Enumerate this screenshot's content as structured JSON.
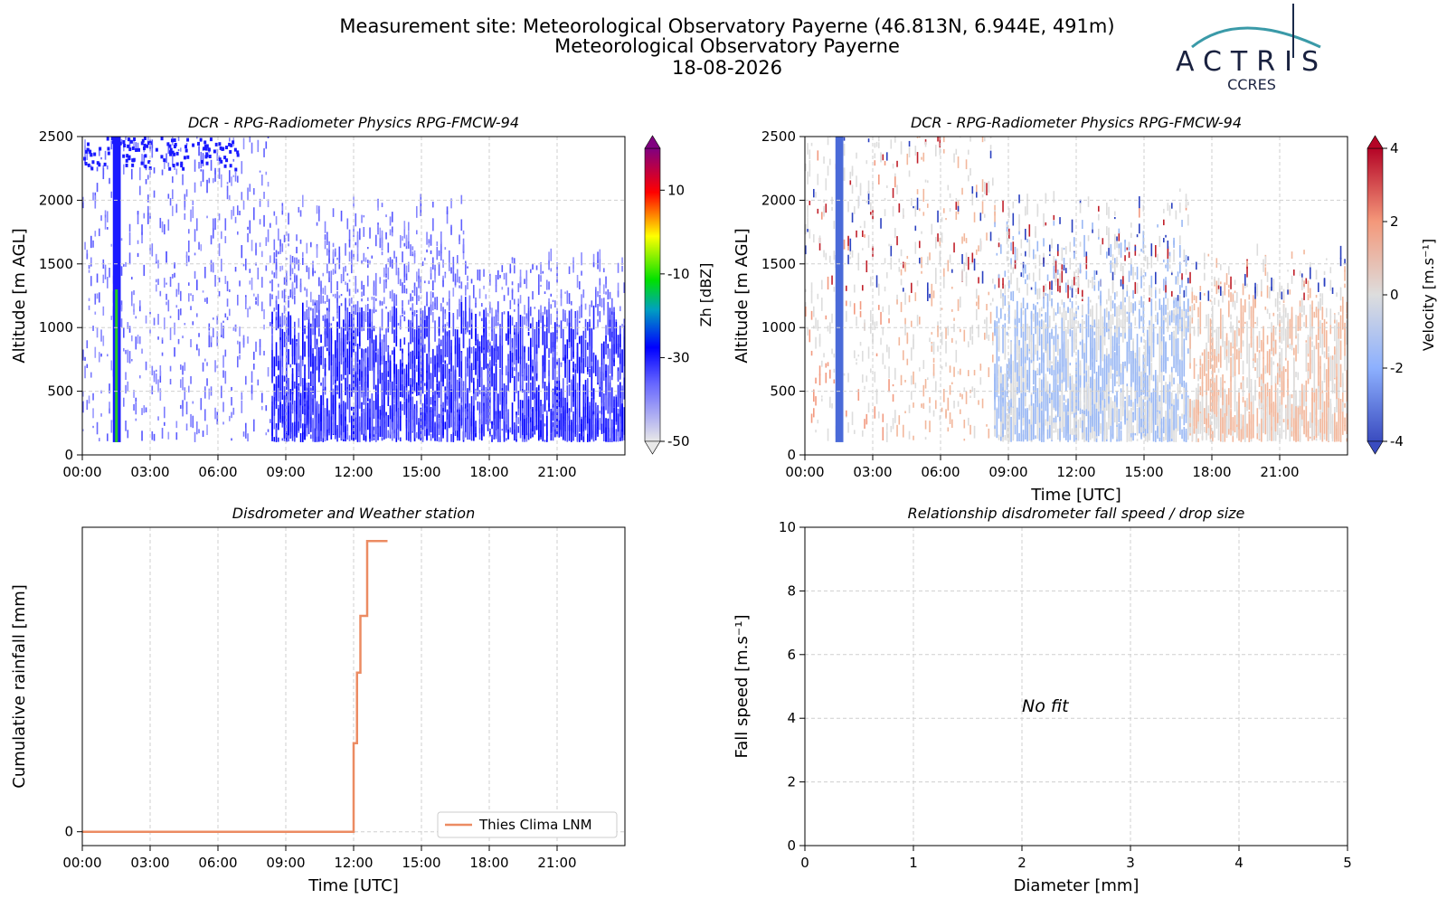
{
  "header": {
    "title_lines": [
      "Measurement site: Meteorological Observatory Payerne (46.813N, 6.944E, 491m)",
      "Meteorological Observatory Payerne",
      "18-08-2026"
    ],
    "logo": {
      "name": "ACTRIS",
      "subtitle": "CCRES"
    }
  },
  "chart_data": [
    {
      "type": "heatmap",
      "title": "DCR - RPG-Radiometer Physics RPG-FMCW-94",
      "ylabel": "Altitude [m AGL]",
      "xlim": [
        0,
        24
      ],
      "xticks": [
        {
          "value": 0,
          "label": "00:00"
        },
        {
          "value": 3,
          "label": "03:00"
        },
        {
          "value": 6,
          "label": "06:00"
        },
        {
          "value": 9,
          "label": "09:00"
        },
        {
          "value": 12,
          "label": "12:00"
        },
        {
          "value": 15,
          "label": "15:00"
        },
        {
          "value": 18,
          "label": "18:00"
        },
        {
          "value": 21,
          "label": "21:00"
        }
      ],
      "ylim": [
        0,
        2500
      ],
      "yticks": [
        0,
        500,
        1000,
        1500,
        2000,
        2500
      ],
      "grid": true,
      "colorbar": {
        "label": "Zh [dBZ]",
        "lim": [
          -50,
          20
        ],
        "ticks": [
          -50,
          -30,
          -10,
          10
        ]
      }
    },
    {
      "type": "heatmap",
      "title": "DCR - RPG-Radiometer Physics RPG-FMCW-94",
      "ylabel": "Altitude [m AGL]",
      "xlabel": "Time [UTC]",
      "xlim": [
        0,
        24
      ],
      "xticks": [
        {
          "value": 0,
          "label": "00:00"
        },
        {
          "value": 3,
          "label": "03:00"
        },
        {
          "value": 6,
          "label": "06:00"
        },
        {
          "value": 9,
          "label": "09:00"
        },
        {
          "value": 12,
          "label": "12:00"
        },
        {
          "value": 15,
          "label": "15:00"
        },
        {
          "value": 18,
          "label": "18:00"
        },
        {
          "value": 21,
          "label": "21:00"
        }
      ],
      "ylim": [
        0,
        2500
      ],
      "yticks": [
        0,
        500,
        1000,
        1500,
        2000,
        2500
      ],
      "grid": true,
      "colorbar": {
        "label": "Velocity [m.s⁻¹]",
        "lim": [
          -4,
          4
        ],
        "ticks": [
          -4,
          -2,
          0,
          2,
          4
        ]
      }
    },
    {
      "type": "line",
      "title": "Disdrometer and Weather station",
      "ylabel": "Cumulative rainfall [mm]",
      "xlabel": "Time [UTC]",
      "xlim": [
        0,
        24
      ],
      "xticks": [
        {
          "value": 0,
          "label": "00:00"
        },
        {
          "value": 3,
          "label": "03:00"
        },
        {
          "value": 6,
          "label": "06:00"
        },
        {
          "value": 9,
          "label": "09:00"
        },
        {
          "value": 12,
          "label": "12:00"
        },
        {
          "value": 15,
          "label": "15:00"
        },
        {
          "value": 18,
          "label": "18:00"
        },
        {
          "value": 21,
          "label": "21:00"
        }
      ],
      "ylim": [
        -0.1,
        2.2
      ],
      "yticks": [
        0
      ],
      "grid": true,
      "legend": "lower right",
      "x": [
        0,
        12.0,
        12.0,
        12.15,
        12.15,
        12.3,
        12.3,
        12.6,
        12.6,
        13.5
      ],
      "series": [
        {
          "name": "Thies Clima LNM",
          "color": "#ec8b62",
          "values": [
            0,
            0,
            0.64,
            0.64,
            1.15,
            1.15,
            1.56,
            1.56,
            2.1,
            2.1
          ]
        }
      ]
    },
    {
      "type": "scatter",
      "title": "Relationship disdrometer fall speed / drop size",
      "ylabel": "Fall speed [m.s⁻¹]",
      "xlabel": "Diameter [mm]",
      "xlim": [
        0,
        5
      ],
      "xticks": [
        0,
        1,
        2,
        3,
        4,
        5
      ],
      "ylim": [
        0,
        10
      ],
      "yticks": [
        0,
        2,
        4,
        6,
        8,
        10
      ],
      "grid": true,
      "annotation": "No fit",
      "series": []
    }
  ]
}
